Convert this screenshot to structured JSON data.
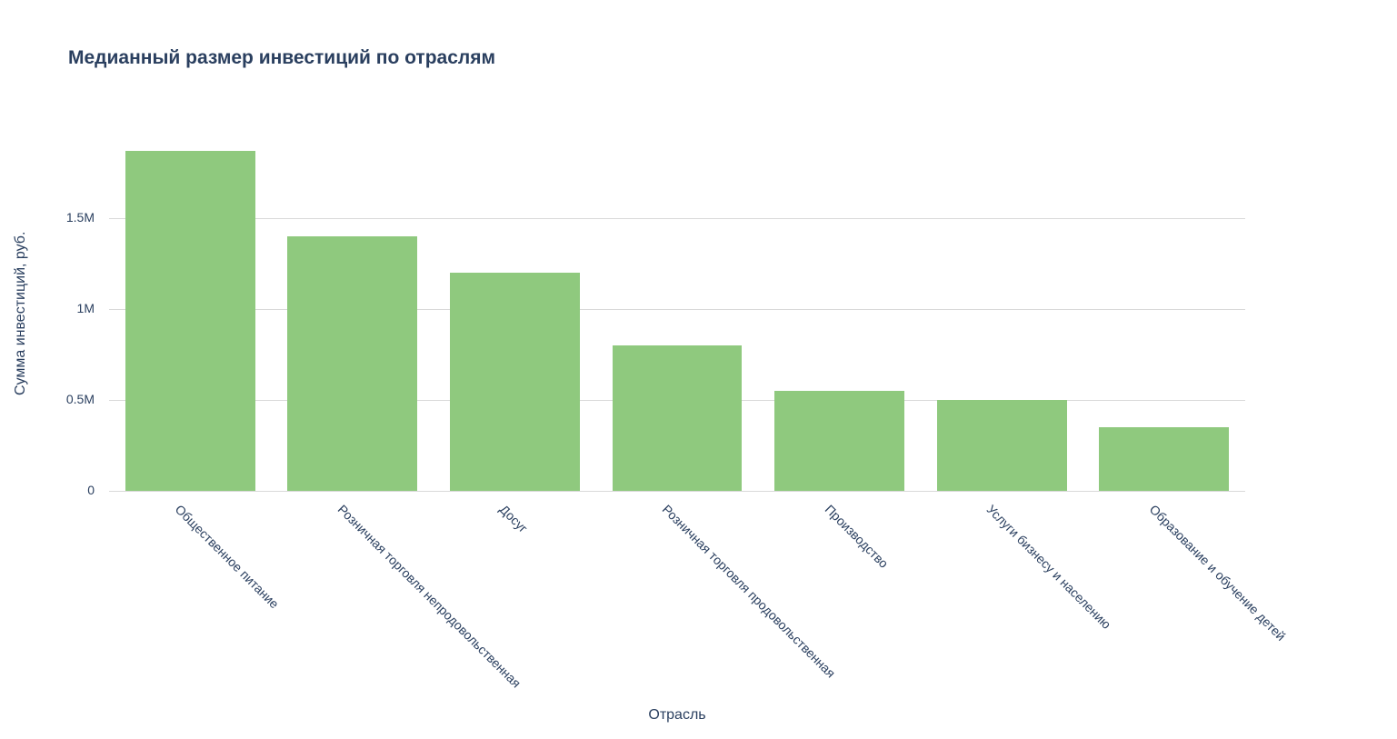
{
  "chart_data": {
    "type": "bar",
    "title": "Медианный размер инвестиций по отраслям",
    "xlabel": "Отрасль",
    "ylabel": "Сумма инвестиций, руб.",
    "categories": [
      "Общественное питание",
      "Розничная торговля непродовольственная",
      "Досуг",
      "Розничная торговля продовольственная",
      "Производство",
      "Услуги бизнесу и населению",
      "Образование и обучение детей"
    ],
    "values": [
      1870000,
      1400000,
      1200000,
      800000,
      550000,
      500000,
      350000
    ],
    "ylim": [
      0,
      1950000
    ],
    "yticks": [
      {
        "value": 0,
        "label": "0"
      },
      {
        "value": 500000,
        "label": "0.5M"
      },
      {
        "value": 1000000,
        "label": "1M"
      },
      {
        "value": 1500000,
        "label": "1.5M"
      }
    ],
    "legend": "none",
    "grid": "horizontal",
    "colors": {
      "bar": "#8FC97E",
      "text": "#2a3f5f",
      "grid": "#d9d9d9",
      "background": "#ffffff"
    }
  }
}
